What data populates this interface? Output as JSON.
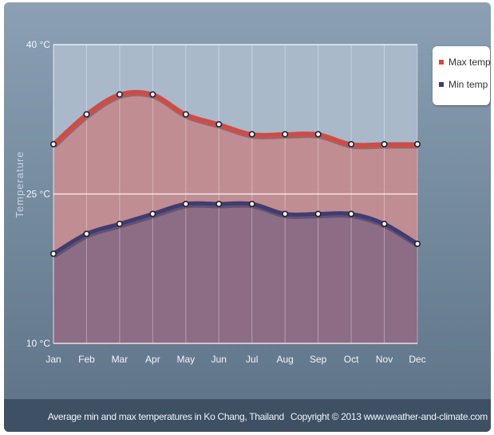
{
  "chart_data": {
    "type": "area",
    "title": "",
    "xlabel": "",
    "ylabel": "Temperature",
    "ylim": [
      10,
      40
    ],
    "y_tick_labels": [
      "40 °C",
      "25 °C",
      "10 °C"
    ],
    "y_tick_values": [
      40,
      25,
      10
    ],
    "categories": [
      "Jan",
      "Feb",
      "Mar",
      "Apr",
      "May",
      "Jun",
      "Jul",
      "Aug",
      "Sep",
      "Oct",
      "Nov",
      "Dec"
    ],
    "series": [
      {
        "name": "Max temp",
        "color": "#e0453a",
        "values": [
          30,
          33,
          35,
          35,
          33,
          32,
          31,
          31,
          31,
          30,
          30,
          30
        ]
      },
      {
        "name": "Min temp",
        "color": "#3a3d7a",
        "values": [
          19,
          21,
          22,
          23,
          24,
          24,
          24,
          23,
          23,
          23,
          22,
          20
        ]
      }
    ],
    "grid": true,
    "legend_position": "top-right"
  },
  "footer": {
    "caption": "Average min and max temperatures in Ko Chang, Thailand",
    "copyright": "Copyright © 2013 www.weather-and-climate.com"
  },
  "colors": {
    "plot_background": "#a9b9ca",
    "max_fill": "#c08a8e",
    "min_fill": "#8a6a86",
    "marker_fill": "#ffffff",
    "marker_stroke": "#1f1f33"
  }
}
